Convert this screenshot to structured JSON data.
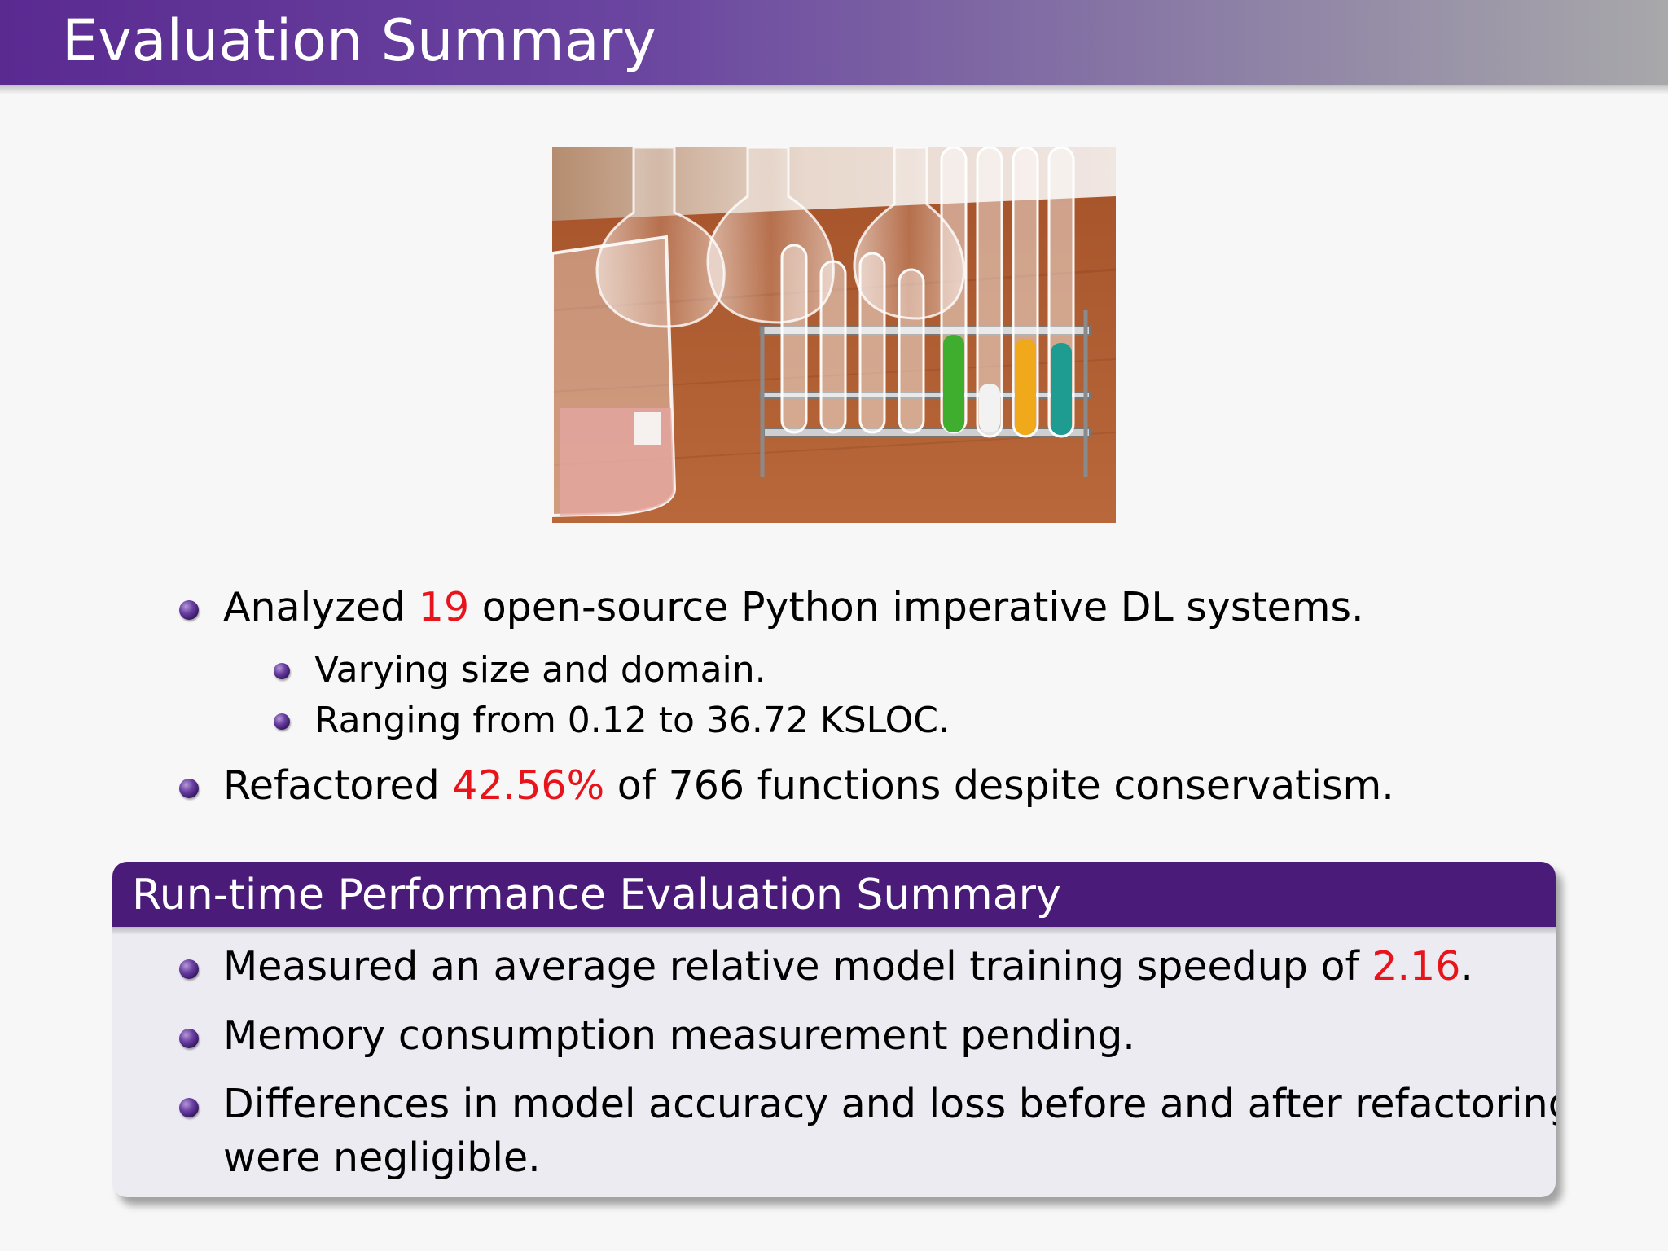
{
  "frame": {
    "title": "Evaluation Summary"
  },
  "photo": {
    "description_icon": "laboratory-glassware-photo"
  },
  "bullets": {
    "b1": {
      "pre": "Analyzed ",
      "hl": "19",
      "post": " open-source Python imperative DL systems."
    },
    "b1_sub1": "Varying size and domain.",
    "b1_sub2": "Ranging from 0.12 to 36.72 KSLOC.",
    "b2": {
      "pre": "Refactored ",
      "hl": "42.56%",
      "post": " of 766 functions despite conservatism."
    }
  },
  "block": {
    "title": "Run-time Performance Evaluation Summary",
    "b1": {
      "pre": "Measured an average relative model training speedup of ",
      "hl": "2.16",
      "post": "."
    },
    "b2": "Memory consumption measurement pending.",
    "b3_line1": "Differences in model accuracy and loss before and after refactoring",
    "b3_line2": "were negligible."
  },
  "colors": {
    "accent": "#4b1b79",
    "highlight": "#e8141b"
  }
}
